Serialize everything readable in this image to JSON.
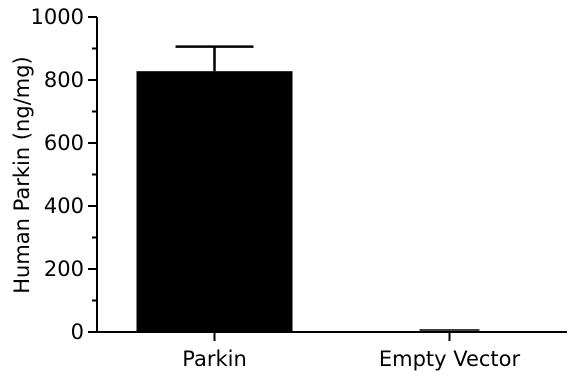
{
  "chart_data": {
    "type": "bar",
    "title": "",
    "xlabel": "",
    "ylabel": "Human Parkin (ng/mg)",
    "categories": [
      "Parkin",
      "Empty Vector"
    ],
    "values": [
      828,
      3
    ],
    "errors": [
      78,
      0
    ],
    "ylim": [
      0,
      1000
    ],
    "yticks": [
      0,
      200,
      400,
      600,
      800,
      1000
    ],
    "ytick_labels": [
      "0",
      "200",
      "400",
      "600",
      "800",
      "1000"
    ],
    "minor_ticks_per_interval": 2,
    "grid": false,
    "legend": "none",
    "colors": {
      "bar": "#000000",
      "axis": "#000000",
      "background": "#ffffff"
    }
  }
}
